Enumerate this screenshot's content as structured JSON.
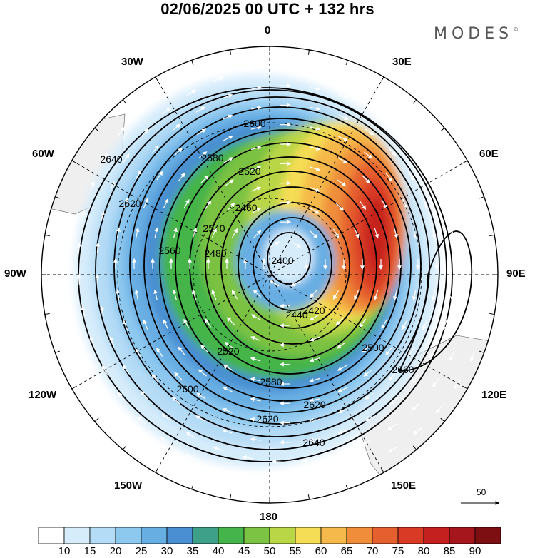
{
  "title": "02/06/2025  00 UTC  + 132 hrs",
  "brand": "MODES",
  "brand_mark": "©",
  "longitude_labels": {
    "n": "0",
    "s": "180",
    "e": "90E",
    "w": "90W",
    "ne30": "30E",
    "ne60": "60E",
    "se120": "120E",
    "se150": "150E",
    "nw30": "30W",
    "nw60": "60W",
    "sw120": "120W",
    "sw150": "150W"
  },
  "contour_labels": [
    "2400",
    "2420",
    "2440",
    "2460",
    "2480",
    "2500",
    "2520",
    "2540",
    "2560",
    "2580",
    "2600",
    "2620",
    "2640",
    "2660"
  ],
  "colorbar": {
    "labels": [
      "10",
      "15",
      "20",
      "25",
      "30",
      "35",
      "40",
      "45",
      "50",
      "55",
      "60",
      "65",
      "70",
      "75",
      "80",
      "85",
      "90"
    ],
    "colors": [
      "#ffffff",
      "#d6ecfb",
      "#b5dcf6",
      "#8dc8ef",
      "#67aee3",
      "#4a8fd1",
      "#3fa08a",
      "#45b44a",
      "#7cc243",
      "#b9d647",
      "#f5dd55",
      "#f5b84a",
      "#ef8d3a",
      "#e5602e",
      "#d93a26",
      "#c4201f",
      "#a5151c",
      "#7d0e12"
    ]
  },
  "wind_reference": "50",
  "colors": {
    "land": "#efefef",
    "frame": "#000000",
    "arrows": "#ffffff",
    "contour": "#000000"
  }
}
